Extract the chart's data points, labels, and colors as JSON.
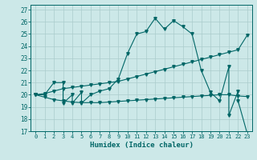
{
  "title": "",
  "xlabel": "Humidex (Indice chaleur)",
  "bg_color": "#cce8e8",
  "grid_color": "#aacccc",
  "line_color": "#006666",
  "xlim": [
    -0.5,
    23.5
  ],
  "ylim": [
    17,
    27.4
  ],
  "yticks": [
    17,
    18,
    19,
    20,
    21,
    22,
    23,
    24,
    25,
    26,
    27
  ],
  "xticks": [
    0,
    1,
    2,
    3,
    4,
    5,
    6,
    7,
    8,
    9,
    10,
    11,
    12,
    13,
    14,
    15,
    16,
    17,
    18,
    19,
    20,
    21,
    22,
    23
  ],
  "series1_x": [
    0,
    1,
    2,
    3,
    3,
    4,
    4,
    5,
    5,
    6,
    7,
    8,
    9,
    10,
    11,
    12,
    13,
    14,
    15,
    16,
    17,
    18,
    19,
    20,
    21,
    21,
    22,
    22,
    23
  ],
  "series1_y": [
    20,
    20,
    21,
    21,
    19.3,
    20,
    19.3,
    20.2,
    19.3,
    20,
    20.3,
    20.5,
    21.3,
    23.4,
    25.0,
    25.2,
    26.3,
    25.4,
    26.1,
    25.6,
    25.0,
    22.0,
    20.2,
    19.5,
    22.3,
    18.3,
    20.3,
    19.5,
    16.8
  ],
  "series2_x": [
    0,
    1,
    2,
    3,
    4,
    5,
    6,
    7,
    8,
    9,
    10,
    11,
    12,
    13,
    14,
    15,
    16,
    17,
    18,
    19,
    20,
    21,
    22,
    23
  ],
  "series2_y": [
    20.0,
    20.1,
    20.3,
    20.5,
    20.6,
    20.7,
    20.8,
    20.9,
    21.0,
    21.1,
    21.3,
    21.5,
    21.7,
    21.9,
    22.1,
    22.3,
    22.5,
    22.7,
    22.9,
    23.1,
    23.3,
    23.5,
    23.7,
    24.9
  ],
  "series3_x": [
    0,
    1,
    2,
    3,
    4,
    5,
    6,
    7,
    8,
    9,
    10,
    11,
    12,
    13,
    14,
    15,
    16,
    17,
    18,
    19,
    20,
    21,
    22,
    23
  ],
  "series3_y": [
    20.0,
    19.8,
    19.6,
    19.5,
    19.4,
    19.35,
    19.35,
    19.35,
    19.4,
    19.45,
    19.5,
    19.55,
    19.6,
    19.65,
    19.7,
    19.75,
    19.8,
    19.85,
    19.9,
    19.95,
    20.0,
    20.0,
    19.9,
    19.85
  ],
  "marker": "v",
  "marker_size": 2.5,
  "linewidth": 0.8
}
